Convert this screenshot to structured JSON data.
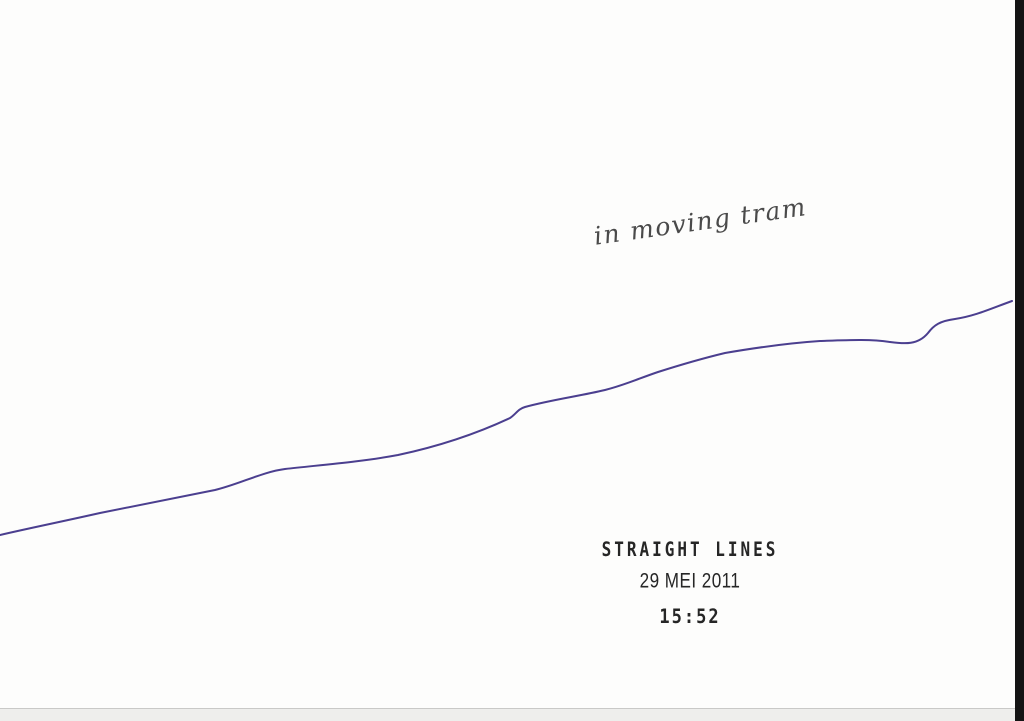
{
  "sheet": {
    "note": "in moving tram",
    "stamp": {
      "title": "STRAIGHT LINES",
      "date": "29 MEI 2011",
      "time": "15:52"
    }
  },
  "colors": {
    "line_ink": "#4b3f8f",
    "note_ink": "#4a4a4a",
    "stamp_ink": "#262626"
  }
}
